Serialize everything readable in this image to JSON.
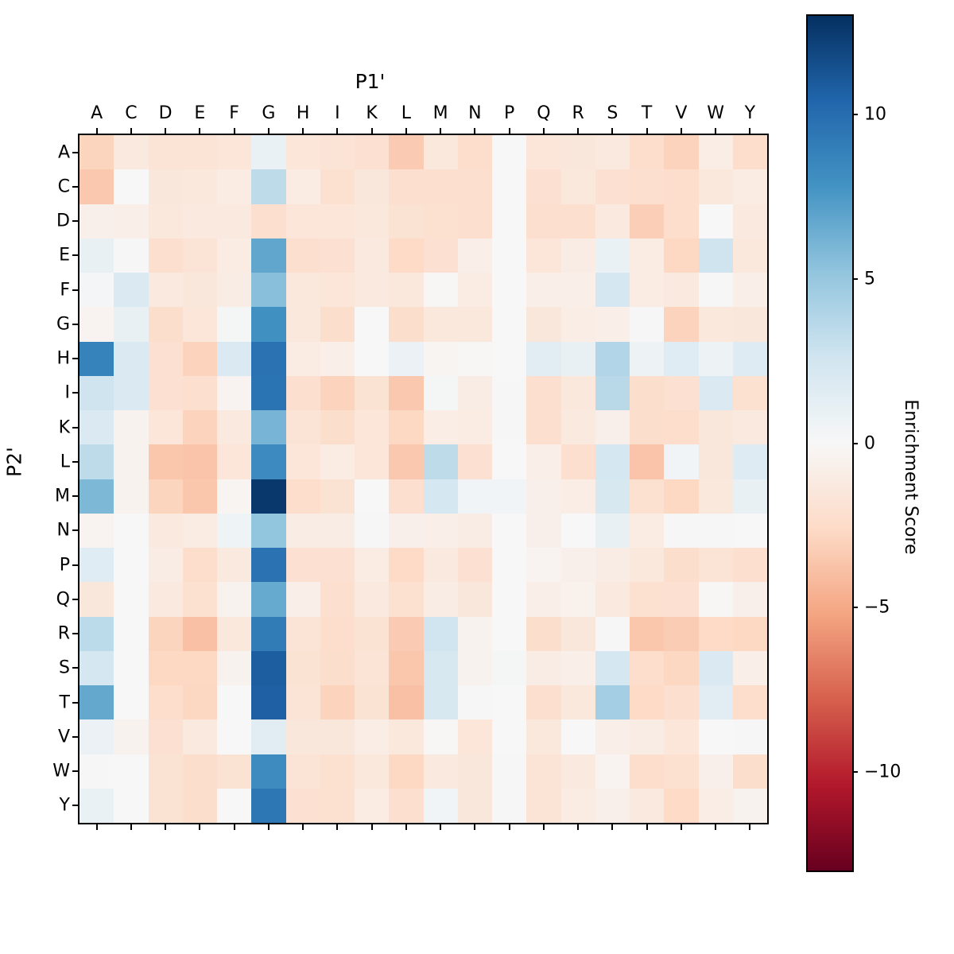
{
  "figure": {
    "background": "#ffffff",
    "text_color": "#000000"
  },
  "chart_data": {
    "type": "heatmap",
    "title": "P1'",
    "xlabel": "P1'",
    "ylabel": "P2'",
    "x_categories": [
      "A",
      "C",
      "D",
      "E",
      "F",
      "G",
      "H",
      "I",
      "K",
      "L",
      "M",
      "N",
      "P",
      "Q",
      "R",
      "S",
      "T",
      "V",
      "W",
      "Y"
    ],
    "y_categories": [
      "A",
      "C",
      "D",
      "E",
      "F",
      "G",
      "H",
      "I",
      "K",
      "L",
      "M",
      "N",
      "P",
      "Q",
      "R",
      "S",
      "T",
      "V",
      "W",
      "Y"
    ],
    "matrix": [
      [
        -2.9,
        -1.3,
        -1.8,
        -1.8,
        -1.6,
        0.9,
        -1.6,
        -1.8,
        -2.0,
        -3.4,
        -1.4,
        -2.4,
        0.0,
        -1.6,
        -1.5,
        -1.3,
        -2.4,
        -3.0,
        -0.9,
        -2.4
      ],
      [
        -3.5,
        0.0,
        -1.5,
        -1.4,
        -1.1,
        3.4,
        -1.1,
        -2.1,
        -1.5,
        -2.2,
        -2.2,
        -2.2,
        0.0,
        -2.0,
        -1.4,
        -2.0,
        -2.2,
        -2.4,
        -1.4,
        -1.1
      ],
      [
        -0.7,
        -0.8,
        -1.4,
        -1.3,
        -1.3,
        -2.2,
        -1.6,
        -1.6,
        -1.4,
        -1.9,
        -2.1,
        -2.2,
        0.0,
        -2.2,
        -2.2,
        -1.3,
        -3.2,
        -2.4,
        0.0,
        -1.3
      ],
      [
        1.0,
        0.1,
        -2.2,
        -1.8,
        -1.1,
        6.8,
        -2.2,
        -2.0,
        -1.3,
        -2.6,
        -2.0,
        -0.8,
        0.0,
        -1.6,
        -1.0,
        0.9,
        -1.1,
        -2.7,
        2.7,
        -1.4
      ],
      [
        0.3,
        2.0,
        -1.3,
        -1.5,
        -1.0,
        5.5,
        -1.4,
        -1.6,
        -1.3,
        -1.4,
        -0.1,
        -1.1,
        0.0,
        -0.8,
        -0.8,
        2.3,
        -1.1,
        -1.3,
        0.1,
        -0.8
      ],
      [
        -0.4,
        1.0,
        -2.3,
        -1.6,
        0.2,
        8.0,
        -1.4,
        -2.3,
        0.0,
        -2.3,
        -1.4,
        -1.4,
        0.0,
        -1.5,
        -0.9,
        -0.8,
        0.1,
        -3.0,
        -1.4,
        -1.5
      ],
      [
        8.8,
        1.9,
        -2.0,
        -3.0,
        2.0,
        9.7,
        -1.1,
        -0.8,
        0.0,
        0.8,
        -0.3,
        -0.1,
        0.0,
        1.5,
        1.0,
        3.9,
        0.7,
        1.6,
        0.7,
        1.7
      ],
      [
        2.7,
        1.9,
        -2.0,
        -2.2,
        -0.4,
        9.6,
        -2.2,
        -3.0,
        -1.9,
        -3.5,
        0.2,
        -1.0,
        0.1,
        -2.2,
        -1.4,
        3.6,
        -2.3,
        -2.0,
        1.9,
        -2.1
      ],
      [
        2.0,
        -0.5,
        -1.6,
        -3.0,
        -1.3,
        6.1,
        -1.8,
        -2.3,
        -1.6,
        -2.7,
        -0.9,
        -1.1,
        0.1,
        -2.2,
        -1.3,
        -0.7,
        -2.3,
        -2.4,
        -1.5,
        -1.3
      ],
      [
        3.4,
        -0.5,
        -3.6,
        -3.7,
        -1.6,
        8.3,
        -1.6,
        -1.1,
        -1.6,
        -3.5,
        3.4,
        -2.0,
        0.0,
        -0.8,
        -2.2,
        2.3,
        -3.7,
        0.5,
        -1.5,
        1.7
      ],
      [
        5.9,
        -0.5,
        -2.9,
        -3.6,
        -0.3,
        12.6,
        -2.4,
        -1.9,
        0.0,
        -2.2,
        2.3,
        0.5,
        0.5,
        -0.7,
        -0.9,
        2.2,
        -2.1,
        -2.7,
        -1.4,
        1.0
      ],
      [
        -0.4,
        0.0,
        -1.3,
        -1.1,
        0.6,
        5.2,
        -1.0,
        -1.0,
        0.1,
        -0.7,
        -0.8,
        -1.0,
        0.0,
        -0.7,
        0.0,
        1.0,
        -1.1,
        0.1,
        0.1,
        0.0
      ],
      [
        1.6,
        0.0,
        -1.0,
        -2.4,
        -1.3,
        9.7,
        -2.0,
        -2.0,
        -1.1,
        -2.6,
        -1.3,
        -2.0,
        0.0,
        -0.4,
        -0.7,
        -1.0,
        -1.4,
        -2.3,
        -1.8,
        -2.2
      ],
      [
        -1.5,
        0.0,
        -1.3,
        -2.1,
        -0.5,
        6.6,
        -0.8,
        -2.2,
        -1.3,
        -2.1,
        -1.0,
        -1.5,
        0.0,
        -0.8,
        -0.6,
        -1.3,
        -2.1,
        -2.0,
        -0.1,
        -0.7
      ],
      [
        3.5,
        0.0,
        -2.9,
        -3.9,
        -1.4,
        9.2,
        -1.8,
        -2.4,
        -1.9,
        -3.4,
        2.6,
        -0.5,
        0.0,
        -2.3,
        -1.5,
        0.1,
        -3.6,
        -3.3,
        -2.6,
        -2.7
      ],
      [
        2.3,
        0.0,
        -2.7,
        -2.7,
        -0.5,
        10.8,
        -1.9,
        -2.3,
        -1.8,
        -3.6,
        2.1,
        -0.5,
        0.2,
        -1.0,
        -0.8,
        2.3,
        -2.4,
        -2.8,
        1.9,
        -0.8
      ],
      [
        6.7,
        0.0,
        -2.4,
        -2.8,
        0.0,
        10.7,
        -1.8,
        -3.0,
        -1.9,
        -3.9,
        2.2,
        0.1,
        0.0,
        -2.2,
        -1.4,
        4.5,
        -2.6,
        -2.2,
        1.5,
        -2.4
      ],
      [
        0.8,
        -0.5,
        -2.0,
        -1.3,
        0.0,
        1.5,
        -1.5,
        -1.5,
        -0.9,
        -1.4,
        -0.1,
        -1.6,
        0.0,
        -1.4,
        0.0,
        -0.8,
        -1.0,
        -1.6,
        0.0,
        0.1
      ],
      [
        0.1,
        0.0,
        -1.9,
        -2.3,
        -1.9,
        8.2,
        -1.8,
        -2.1,
        -1.4,
        -2.7,
        -1.3,
        -1.5,
        0.1,
        -1.8,
        -1.3,
        -0.4,
        -2.4,
        -2.1,
        -0.7,
        -2.3
      ],
      [
        0.9,
        0.0,
        -1.9,
        -2.3,
        0.0,
        9.4,
        -2.0,
        -2.1,
        -1.1,
        -2.2,
        0.4,
        -1.5,
        0.1,
        -1.8,
        -1.1,
        -0.7,
        -1.3,
        -2.6,
        -0.9,
        -0.5
      ]
    ],
    "colorbar": {
      "label": "Enrichment Score",
      "vmin": -13,
      "vmax": 13,
      "ticks": [
        {
          "value": 10,
          "label": "10"
        },
        {
          "value": 5,
          "label": "5"
        },
        {
          "value": 0,
          "label": "0"
        },
        {
          "value": -5,
          "label": "−5"
        },
        {
          "value": -10,
          "label": "−10"
        }
      ]
    },
    "colormap": {
      "name": "RdBu",
      "anchors": [
        "#67001f",
        "#b2182b",
        "#d6604d",
        "#f4a582",
        "#fddbc7",
        "#f7f7f7",
        "#d1e5f0",
        "#92c5de",
        "#4393c3",
        "#2166ac",
        "#053061"
      ]
    },
    "grid": false,
    "legend": false
  }
}
